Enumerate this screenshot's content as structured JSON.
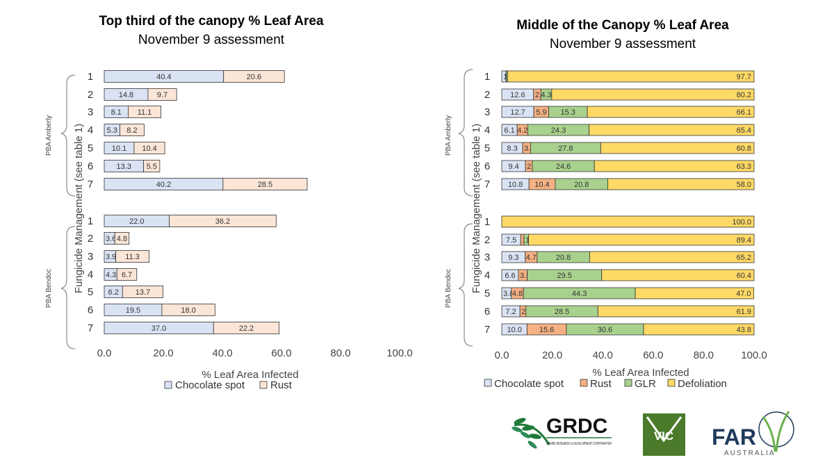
{
  "chart_data": [
    {
      "type": "bar",
      "orientation": "horizontal",
      "stacked": true,
      "title": "Top third of the canopy % Leaf Area",
      "subtitle": "November 9 assessment",
      "xlabel": "% Leaf Area Infected",
      "ylabel": "Fungicide Management (see table 1)",
      "xlim": [
        0,
        100
      ],
      "xticks": [
        "0.0",
        "20.0",
        "40.0",
        "60.0",
        "80.0",
        "100.0"
      ],
      "groups": [
        {
          "name": "PBA Amberly",
          "categories": [
            "1",
            "2",
            "3",
            "4",
            "5",
            "6",
            "7"
          ]
        },
        {
          "name": "PBA Bendoc",
          "categories": [
            "1",
            "2",
            "3",
            "4",
            "5",
            "6",
            "7"
          ]
        }
      ],
      "series": [
        {
          "name": "Chocolate spot",
          "color": "#dae3f3",
          "values": [
            40.4,
            14.8,
            8.1,
            5.3,
            10.1,
            13.3,
            40.2,
            22.0,
            3.6,
            3.9,
            4.3,
            6.2,
            19.5,
            37.0
          ]
        },
        {
          "name": "Rust",
          "color": "#fbe5d6",
          "values": [
            20.6,
            9.7,
            11.1,
            8.2,
            10.4,
            5.5,
            28.5,
            36.2,
            4.8,
            11.3,
            6.7,
            13.7,
            18.0,
            22.2
          ]
        }
      ],
      "legend_position": "bottom"
    },
    {
      "type": "bar",
      "orientation": "horizontal",
      "stacked": true,
      "title": "Middle of the Canopy % Leaf Area",
      "subtitle": "November 9 assessment",
      "xlabel": "% Leaf Area Infected",
      "ylabel": "Fungicide Management (see table 1)",
      "xlim": [
        0,
        100
      ],
      "xticks": [
        "0.0",
        "20.0",
        "40.0",
        "60.0",
        "80.0",
        "100.0"
      ],
      "groups": [
        {
          "name": "PBA Amberly",
          "categories": [
            "1",
            "2",
            "3",
            "4",
            "5",
            "6",
            "7"
          ]
        },
        {
          "name": "PBA Bendoc",
          "categories": [
            "1",
            "2",
            "3",
            "4",
            "5",
            "6",
            "7"
          ]
        }
      ],
      "series": [
        {
          "name": "Chocolate spot",
          "color": "#dae3f3",
          "values": [
            1.7,
            12.6,
            12.7,
            6.1,
            8.3,
            9.4,
            10.8,
            0.0,
            7.5,
            9.3,
            6.6,
            3.8,
            7.2,
            10.0
          ]
        },
        {
          "name": "Rust",
          "color": "#f4b183",
          "values": [
            0.1,
            2.9,
            5.9,
            4.2,
            3.1,
            2.7,
            10.4,
            0.0,
            1.3,
            4.7,
            3.5,
            4.8,
            2.4,
            15.6
          ]
        },
        {
          "name": "GLR",
          "color": "#a9d18e",
          "values": [
            0.5,
            4.3,
            15.3,
            24.3,
            27.8,
            24.6,
            20.8,
            0.0,
            1.8,
            20.8,
            29.5,
            44.3,
            28.5,
            30.6
          ]
        },
        {
          "name": "Defoliation",
          "color": "#ffd966",
          "values": [
            97.7,
            80.2,
            66.1,
            65.4,
            60.8,
            63.3,
            58.0,
            100.0,
            89.4,
            65.2,
            60.4,
            47.0,
            61.9,
            43.8
          ]
        }
      ],
      "legend_position": "bottom"
    }
  ],
  "logos": {
    "grdc": {
      "name": "GRDC",
      "tagline": "GRAINS RESEARCH & DEVELOPMENT CORPORATION"
    },
    "vic": {
      "name": "VIC"
    },
    "far": {
      "name": "FAR",
      "sub": "AUSTRALIA"
    }
  },
  "colors": {
    "bar_stroke": "#333333",
    "bracket": "#888888",
    "grdc_green": "#1f7a3a",
    "vic_green": "#4a7a2a",
    "far_navy": "#1f3a5a"
  }
}
